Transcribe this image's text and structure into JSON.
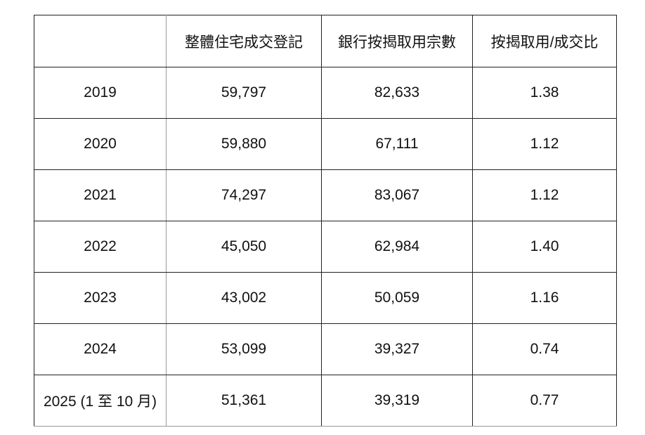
{
  "table": {
    "headers": [
      "",
      "整體住宅成交登記",
      "銀行按揭取用宗數",
      "按揭取用/成交比"
    ],
    "rows": [
      [
        "2019",
        "59,797",
        "82,633",
        "1.38"
      ],
      [
        "2020",
        "59,880",
        "67,111",
        "1.12"
      ],
      [
        "2021",
        "74,297",
        "83,067",
        "1.12"
      ],
      [
        "2022",
        "45,050",
        "62,984",
        "1.40"
      ],
      [
        "2023",
        "43,002",
        "50,059",
        "1.16"
      ],
      [
        "2024",
        "53,099",
        "39,327",
        "0.74"
      ],
      [
        "2025 (1 至 10 月)",
        "51,361",
        "39,319",
        "0.77"
      ]
    ]
  }
}
